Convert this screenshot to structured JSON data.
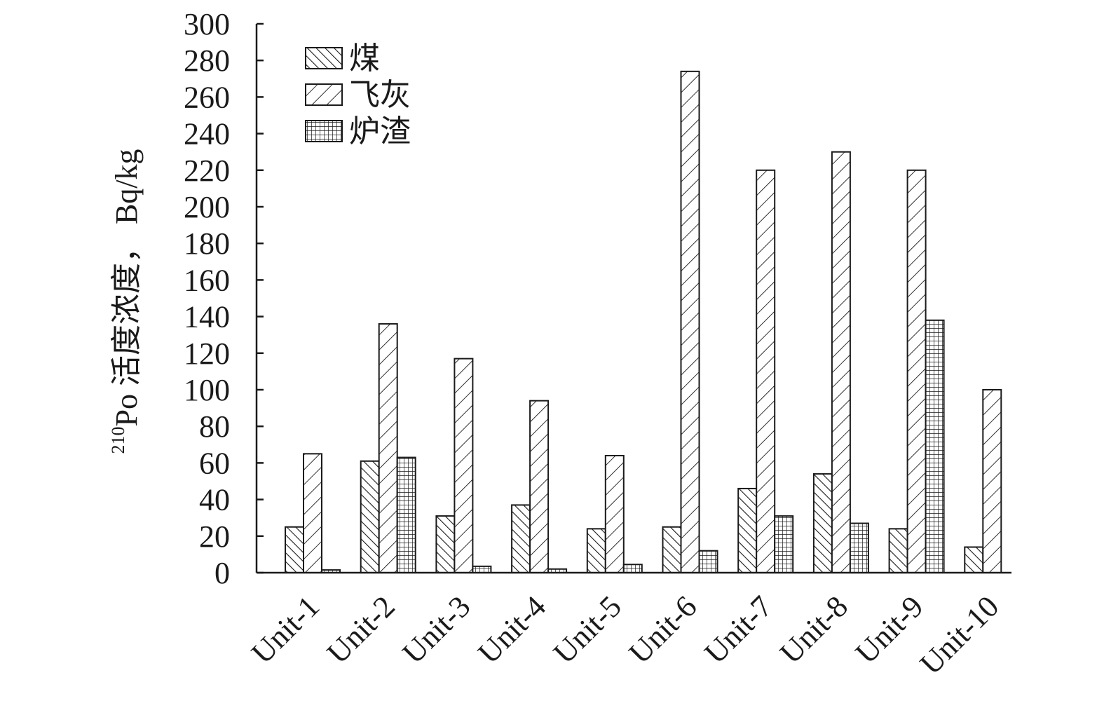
{
  "chart_data": {
    "type": "bar",
    "categories": [
      "Unit-1",
      "Unit-2",
      "Unit-3",
      "Unit-4",
      "Unit-5",
      "Unit-6",
      "Unit-7",
      "Unit-8",
      "Unit-9",
      "Unit-10"
    ],
    "series": [
      {
        "name": "煤",
        "pattern": "backslash-hatch",
        "values": [
          25,
          61,
          31,
          37,
          24,
          25,
          46,
          54,
          24,
          14
        ]
      },
      {
        "name": "飞灰",
        "pattern": "slash-hatch",
        "values": [
          65,
          136,
          117,
          94,
          64,
          274,
          220,
          230,
          220,
          100
        ]
      },
      {
        "name": "炉渣",
        "pattern": "grid",
        "values": [
          1.5,
          63,
          3.5,
          2,
          4.5,
          12,
          31,
          27,
          138,
          0
        ]
      }
    ],
    "ylabel_sup": "210",
    "ylabel": "Po 活度浓度， Bq/kg",
    "ylim": [
      0,
      300
    ],
    "yticks": [
      0,
      20,
      40,
      60,
      80,
      100,
      120,
      140,
      160,
      180,
      200,
      220,
      240,
      260,
      280,
      300
    ],
    "legend_position": "top-left",
    "grid": false,
    "colors": {
      "stroke": "#1a1a1a",
      "fill": "#ffffff"
    }
  }
}
